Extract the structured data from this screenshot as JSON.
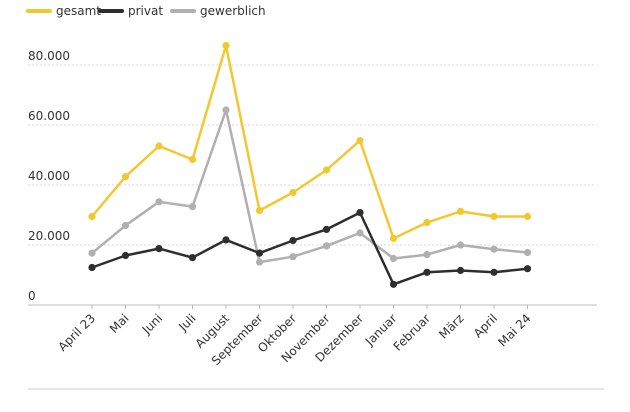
{
  "chart_data": {
    "type": "line",
    "title": "",
    "xlabel": "",
    "ylabel": "",
    "categories": [
      "April 23",
      "Mai",
      "Juni",
      "Juli",
      "August",
      "September",
      "Oktober",
      "November",
      "Dezember",
      "Januar",
      "Februar",
      "März",
      "April",
      "Mai 24"
    ],
    "series": [
      {
        "name": "gesamt",
        "color": "#f2c830",
        "values": [
          29500,
          42800,
          53000,
          48500,
          86500,
          31500,
          37500,
          45000,
          54800,
          22200,
          27500,
          31200,
          29500,
          29500
        ]
      },
      {
        "name": "privat",
        "color": "#2e2e2e",
        "values": [
          12500,
          16500,
          18800,
          15800,
          21700,
          17300,
          21500,
          25200,
          30800,
          6900,
          10900,
          11500,
          10900,
          12100
        ]
      },
      {
        "name": "gewerblich",
        "color": "#b0b0b0",
        "values": [
          17300,
          26500,
          34400,
          32800,
          65000,
          14300,
          16100,
          19700,
          24000,
          15500,
          16800,
          20000,
          18600,
          17500
        ]
      }
    ],
    "yticks": [
      0,
      20000,
      40000,
      60000,
      80000
    ],
    "ytick_labels": [
      "0",
      "20.000",
      "40.000",
      "60.000",
      "80.000"
    ],
    "ylim": [
      0,
      90000
    ],
    "grid": true,
    "legend_position": "top-left"
  }
}
